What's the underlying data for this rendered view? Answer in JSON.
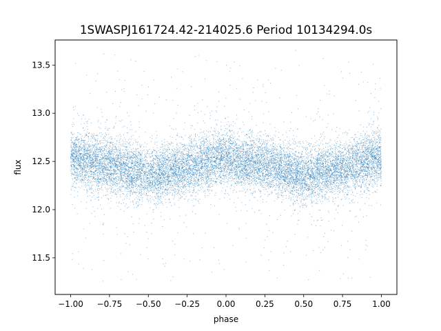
{
  "chart_data": {
    "type": "scatter",
    "title": "1SWASPJ161724.42-214025.6 Period 10134294.0s",
    "xlabel": "phase",
    "ylabel": "flux",
    "xlim": [
      -1.1,
      1.1
    ],
    "ylim": [
      11.12,
      13.76
    ],
    "xticks": [
      -1.0,
      -0.75,
      -0.5,
      -0.25,
      0.0,
      0.25,
      0.5,
      0.75,
      1.0
    ],
    "xtick_labels": [
      "−1.00",
      "−0.75",
      "−0.50",
      "−0.25",
      "0.00",
      "0.25",
      "0.50",
      "0.75",
      "1.00"
    ],
    "yticks": [
      11.5,
      12.0,
      12.5,
      13.0,
      13.5
    ],
    "ytick_labels": [
      "11.5",
      "12.0",
      "12.5",
      "13.0",
      "13.5"
    ],
    "grid": false,
    "legend": "none",
    "marker_color": "#1f77b4",
    "phase_range": [
      -1.0,
      1.0
    ],
    "flux_range": [
      11.25,
      13.66
    ],
    "flux_profile": {
      "phase": [
        -1.0,
        -0.9,
        -0.8,
        -0.7,
        -0.6,
        -0.5,
        -0.4,
        -0.3,
        -0.2,
        -0.1,
        0.0
      ],
      "median_flux": [
        12.55,
        12.5,
        12.47,
        12.45,
        12.4,
        12.35,
        12.38,
        12.42,
        12.45,
        12.5,
        12.55
      ]
    }
  }
}
